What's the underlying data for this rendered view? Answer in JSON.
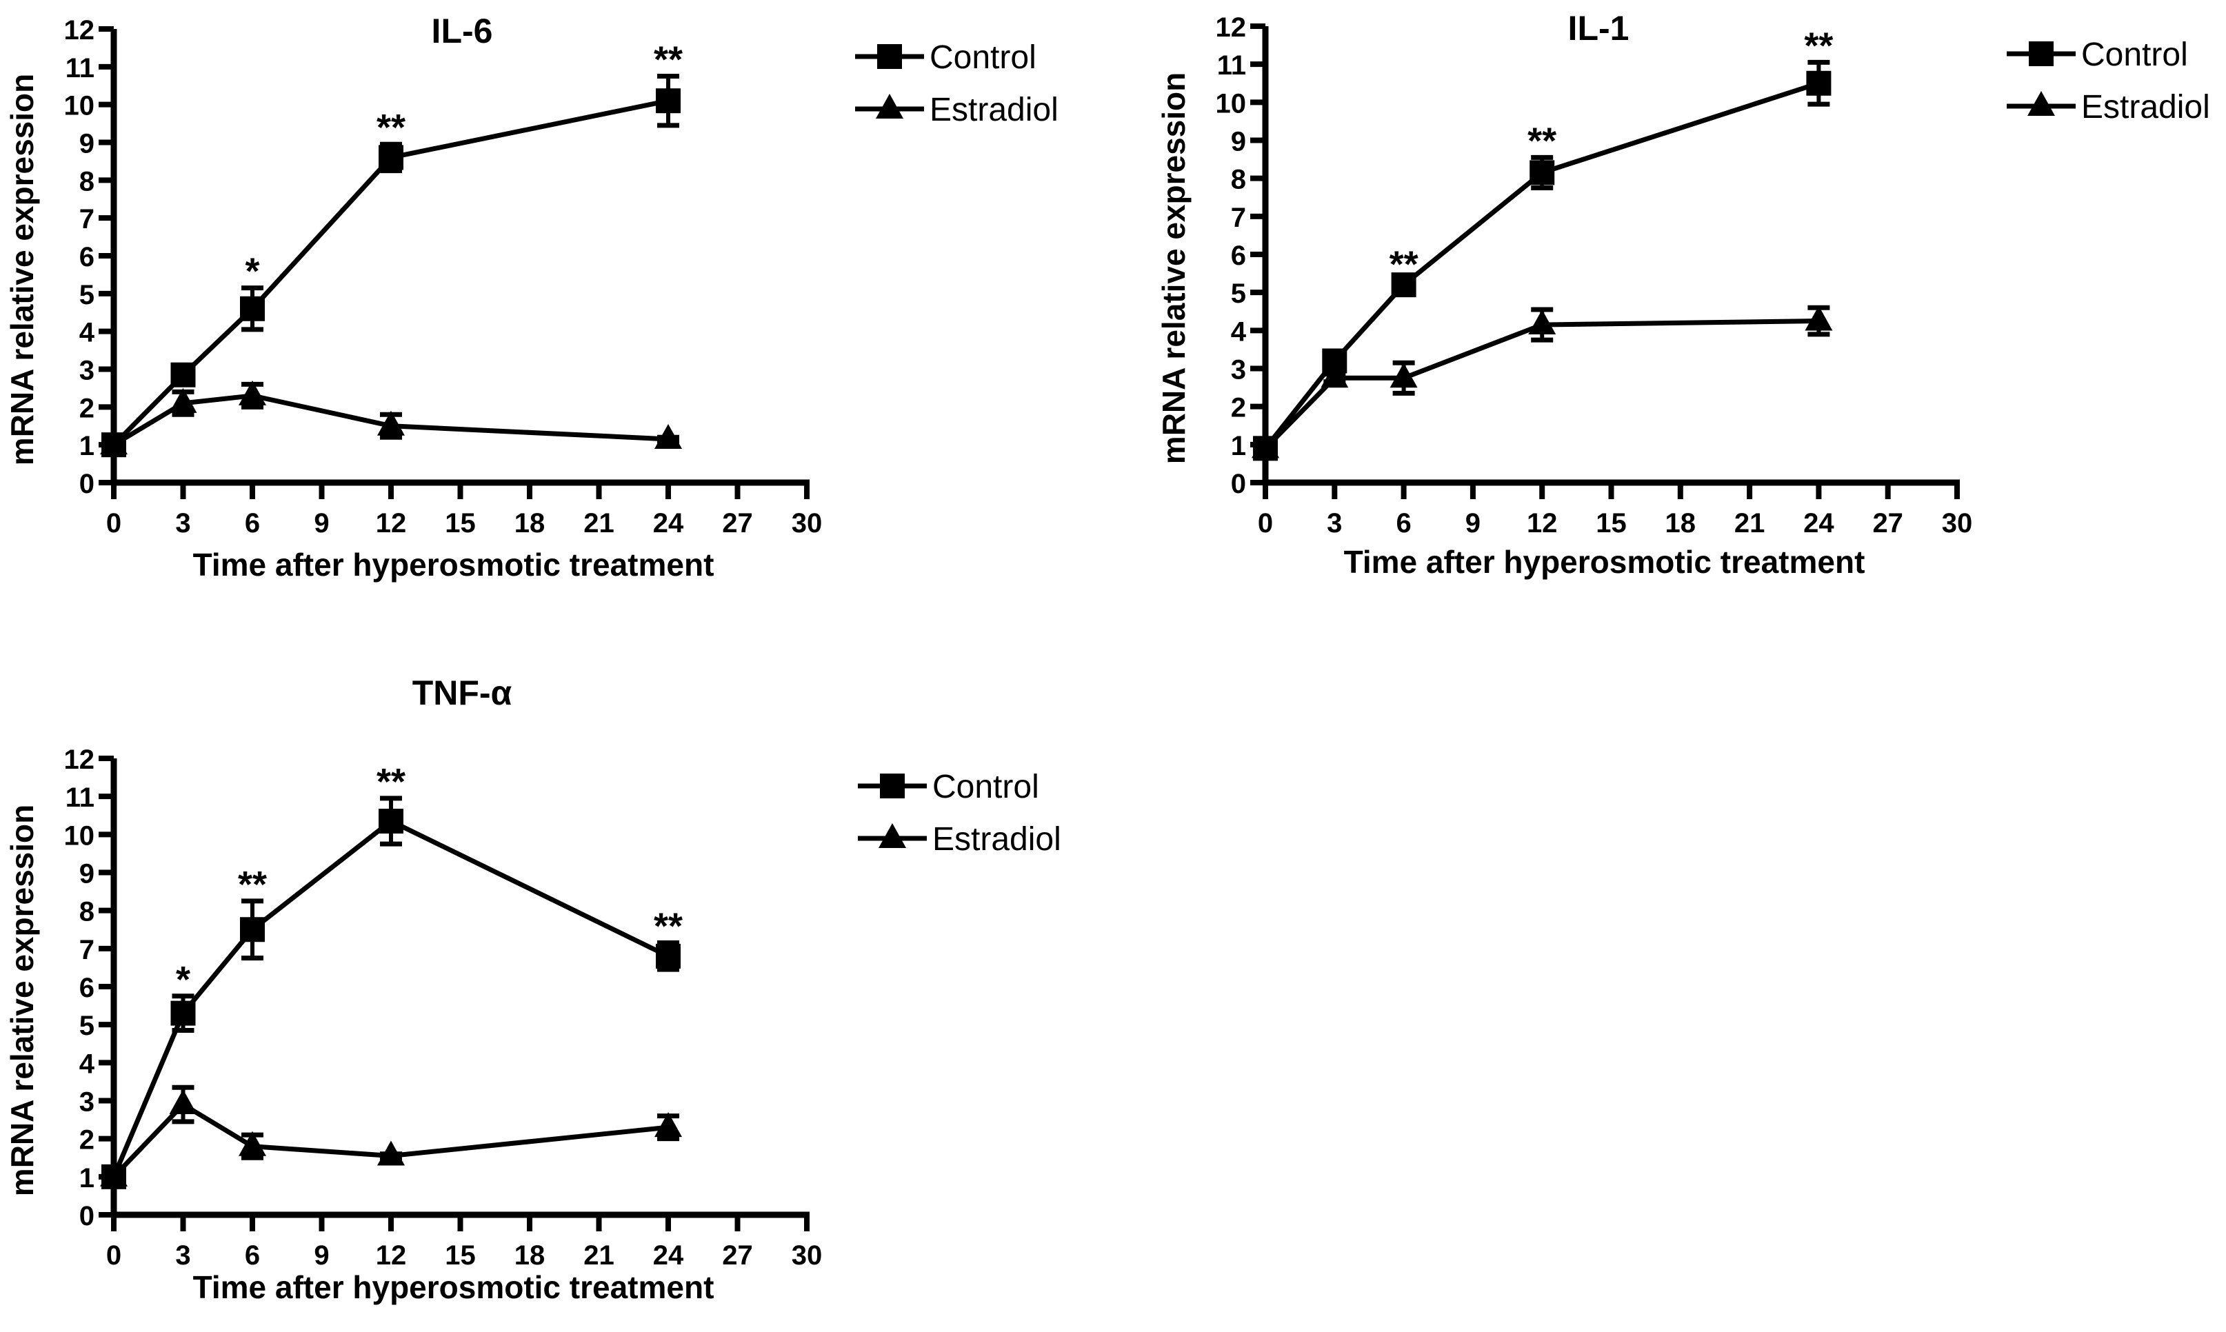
{
  "chart_data": [
    {
      "type": "line",
      "title": "IL-6",
      "xlabel": "Time after hyperosmotic treatment",
      "ylabel": "mRNA relative expression",
      "xlim": [
        0,
        30
      ],
      "ylim": [
        0,
        12
      ],
      "xticks": [
        0,
        3,
        6,
        9,
        12,
        15,
        18,
        21,
        24,
        27,
        30
      ],
      "yticks": [
        0,
        1,
        2,
        3,
        4,
        5,
        6,
        7,
        8,
        9,
        10,
        11,
        12
      ],
      "grid": false,
      "legend": "top-right",
      "x": [
        0,
        3,
        6,
        12,
        24
      ],
      "series": [
        {
          "name": "Control",
          "marker": "square",
          "values": [
            1.0,
            2.85,
            4.6,
            8.6,
            10.1
          ],
          "errors": [
            0.1,
            0.15,
            0.55,
            0.35,
            0.65
          ],
          "significance": [
            "",
            "",
            "*",
            "**",
            "**"
          ]
        },
        {
          "name": "Estradiol",
          "marker": "triangle",
          "values": [
            1.0,
            2.1,
            2.3,
            1.5,
            1.15
          ],
          "errors": [
            0.1,
            0.3,
            0.3,
            0.3,
            0.05
          ],
          "significance": [
            "",
            "",
            "",
            "",
            ""
          ]
        }
      ]
    },
    {
      "type": "line",
      "title": "IL-1",
      "xlabel": "Time after hyperosmotic treatment",
      "ylabel": "mRNA relative expression",
      "xlim": [
        0,
        30
      ],
      "ylim": [
        0,
        12
      ],
      "xticks": [
        0,
        3,
        6,
        9,
        12,
        15,
        18,
        21,
        24,
        27,
        30
      ],
      "yticks": [
        0,
        1,
        2,
        3,
        4,
        5,
        6,
        7,
        8,
        9,
        10,
        11,
        12
      ],
      "grid": false,
      "legend": "top-right",
      "x": [
        0,
        3,
        6,
        12,
        24
      ],
      "series": [
        {
          "name": "Control",
          "marker": "square",
          "values": [
            0.9,
            3.2,
            5.2,
            8.15,
            10.5
          ],
          "errors": [
            0.1,
            0.15,
            0.1,
            0.4,
            0.55
          ],
          "significance": [
            "",
            "",
            "**",
            "**",
            "**"
          ]
        },
        {
          "name": "Estradiol",
          "marker": "triangle",
          "values": [
            0.9,
            2.75,
            2.75,
            4.15,
            4.25
          ],
          "errors": [
            0.1,
            0.1,
            0.4,
            0.4,
            0.35
          ],
          "significance": [
            "",
            "",
            "",
            "",
            ""
          ]
        }
      ]
    },
    {
      "type": "line",
      "title": "TNF-α",
      "xlabel": "Time after hyperosmotic treatment",
      "ylabel": "mRNA relative expression",
      "xlim": [
        0,
        30
      ],
      "ylim": [
        0,
        12
      ],
      "xticks": [
        0,
        3,
        6,
        9,
        12,
        15,
        18,
        21,
        24,
        27,
        30
      ],
      "yticks": [
        0,
        1,
        2,
        3,
        4,
        5,
        6,
        7,
        8,
        9,
        10,
        11,
        12
      ],
      "grid": false,
      "legend": "top-right",
      "x": [
        0,
        3,
        6,
        12,
        24
      ],
      "series": [
        {
          "name": "Control",
          "marker": "square",
          "values": [
            1.0,
            5.3,
            7.5,
            10.35,
            6.8
          ],
          "errors": [
            0.1,
            0.45,
            0.75,
            0.6,
            0.35
          ],
          "significance": [
            "",
            "*",
            "**",
            "**",
            "**"
          ]
        },
        {
          "name": "Estradiol",
          "marker": "triangle",
          "values": [
            1.0,
            2.9,
            1.8,
            1.55,
            2.3
          ],
          "errors": [
            0.1,
            0.45,
            0.3,
            0.05,
            0.3
          ],
          "significance": [
            "",
            "",
            "",
            "",
            ""
          ]
        }
      ]
    }
  ]
}
